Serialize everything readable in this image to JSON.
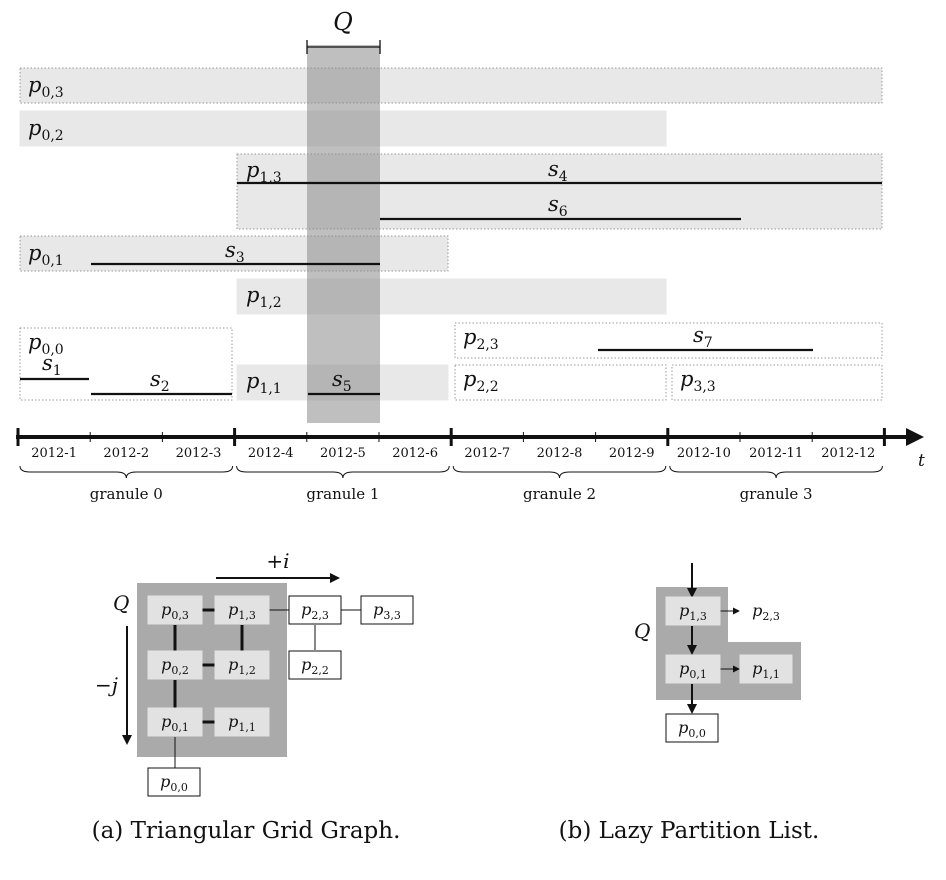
{
  "query_label": "Q",
  "time_label": "t",
  "months": [
    "2012-1",
    "2012-2",
    "2012-3",
    "2012-4",
    "2012-5",
    "2012-6",
    "2012-7",
    "2012-8",
    "2012-9",
    "2012-10",
    "2012-11",
    "2012-12"
  ],
  "granules": [
    "granule 0",
    "granule 1",
    "granule 2",
    "granule 3"
  ],
  "partitions": {
    "p03": {
      "base": "p",
      "sub": "0,3"
    },
    "p02": {
      "base": "p",
      "sub": "0,2"
    },
    "p13": {
      "base": "p",
      "sub": "1,3"
    },
    "p01": {
      "base": "p",
      "sub": "0,1"
    },
    "p12": {
      "base": "p",
      "sub": "1,2"
    },
    "p00": {
      "base": "p",
      "sub": "0,0"
    },
    "p11": {
      "base": "p",
      "sub": "1,1"
    },
    "p23": {
      "base": "p",
      "sub": "2,3"
    },
    "p22": {
      "base": "p",
      "sub": "2,2"
    },
    "p33": {
      "base": "p",
      "sub": "3,3"
    }
  },
  "segments": {
    "s1": {
      "base": "s",
      "sub": "1"
    },
    "s2": {
      "base": "s",
      "sub": "2"
    },
    "s3": {
      "base": "s",
      "sub": "3"
    },
    "s4": {
      "base": "s",
      "sub": "4"
    },
    "s5": {
      "base": "s",
      "sub": "5"
    },
    "s6": {
      "base": "s",
      "sub": "6"
    },
    "s7": {
      "base": "s",
      "sub": "7"
    }
  },
  "grid": {
    "i_label": "+i",
    "j_label": "−j",
    "q_label": "Q"
  },
  "lazy": {
    "q_label": "Q"
  },
  "captions": {
    "a": "(a) Triangular Grid Graph.",
    "b": "(b) Lazy Partition List."
  }
}
